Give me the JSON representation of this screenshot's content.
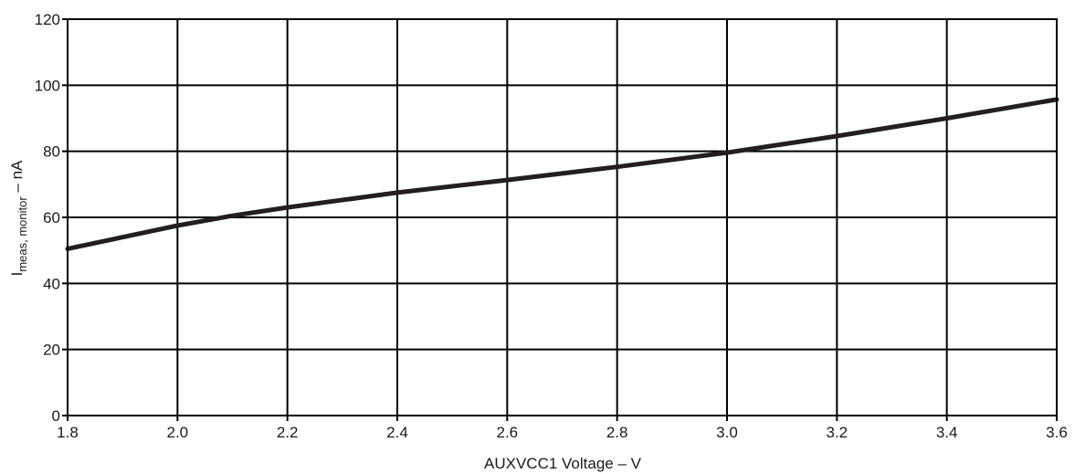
{
  "chart_data": {
    "type": "line",
    "xlabel": "AUXVCC1 Voltage – V",
    "ylabel": {
      "main": "I",
      "subscript": "meas, monitor",
      "suffix": " – nA"
    },
    "xlim": [
      1.8,
      3.6
    ],
    "ylim": [
      0,
      120
    ],
    "x_ticks": [
      "1.8",
      "2.0",
      "2.2",
      "2.4",
      "2.6",
      "2.8",
      "3.0",
      "3.2",
      "3.4",
      "3.6"
    ],
    "y_ticks": [
      "0",
      "20",
      "40",
      "60",
      "80",
      "100",
      "120"
    ],
    "grid": true,
    "series": [
      {
        "color": "#231f20",
        "x": [
          1.8,
          1.9,
          2.0,
          2.1,
          2.2,
          2.4,
          2.6,
          2.8,
          3.0,
          3.2,
          3.4,
          3.6
        ],
        "values": [
          50.5,
          54.0,
          57.5,
          60.5,
          63.0,
          67.5,
          71.3,
          75.3,
          79.6,
          84.6,
          90.0,
          95.7
        ]
      }
    ]
  }
}
